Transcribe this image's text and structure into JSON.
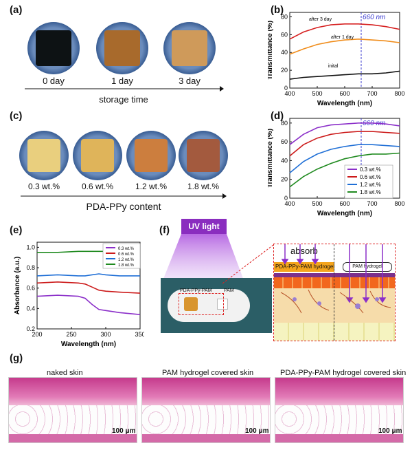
{
  "labels": {
    "a": "(a)",
    "b": "(b)",
    "c": "(c)",
    "d": "(d)",
    "e": "(e)",
    "f": "(f)",
    "g": "(g)"
  },
  "panel_a": {
    "items": [
      "0 day",
      "1 day",
      "3 day"
    ],
    "axis_label": "storage time",
    "colors": {
      "dish": "#3a5a8a",
      "s0": "#0d1214",
      "s1": "#a86a2c",
      "s2": "#cf9a5a"
    }
  },
  "panel_c": {
    "items": [
      "0.3 wt.%",
      "0.6 wt.%",
      "1.2 wt.%",
      "1.8 wt.%"
    ],
    "axis_label": "PDA-PPy content",
    "colors": {
      "s0": "#e9cf7e",
      "s1": "#dfb45a",
      "s2": "#cc7e3e",
      "s3": "#a35a3e"
    }
  },
  "panel_f": {
    "uv_label": "UV light",
    "sample_label": "PDA-PPy-PAM",
    "pam_label": "PAM",
    "absorb_label": "absorb",
    "left_layer": "PDA-PPy-PAM hydrogel",
    "right_layer": "PAM hydrogel"
  },
  "panel_g": {
    "titles": [
      "naked skin",
      "PAM hydrogel covered skin",
      "PDA-PPy-PAM hydrogel covered skin"
    ],
    "scale": "100 μm"
  },
  "chart_data": [
    {
      "id": "b",
      "type": "line",
      "xlabel": "Wavelength (nm)",
      "ylabel": "Transmittance (%)",
      "xlim": [
        400,
        800
      ],
      "ylim": [
        0,
        85
      ],
      "xticks": [
        400,
        500,
        600,
        700,
        800
      ],
      "yticks": [
        0,
        20,
        40,
        60,
        80
      ],
      "marker": {
        "x": 660,
        "label": "660 nm"
      },
      "series": [
        {
          "name": "after 3 day",
          "color": "#d62020",
          "x": [
            400,
            450,
            500,
            550,
            600,
            650,
            700,
            750,
            800
          ],
          "y": [
            55,
            63,
            68,
            71,
            72,
            72,
            71,
            69,
            66
          ]
        },
        {
          "name": "after 1 day",
          "color": "#f08c1a",
          "x": [
            400,
            450,
            500,
            550,
            600,
            650,
            700,
            750,
            800
          ],
          "y": [
            38,
            44,
            49,
            52,
            54,
            55,
            54,
            53,
            51
          ]
        },
        {
          "name": "inital",
          "color": "#111111",
          "x": [
            400,
            450,
            500,
            550,
            600,
            650,
            700,
            750,
            800
          ],
          "y": [
            10,
            12,
            13,
            14,
            15,
            16,
            16,
            17,
            19
          ]
        }
      ],
      "annotations": [
        "after 3 day",
        "after 1 day",
        "inital"
      ]
    },
    {
      "id": "d",
      "type": "line",
      "xlabel": "Wavelength (nm)",
      "ylabel": "Transmittance (%)",
      "xlim": [
        400,
        800
      ],
      "ylim": [
        0,
        85
      ],
      "xticks": [
        400,
        500,
        600,
        700,
        800
      ],
      "yticks": [
        0,
        20,
        40,
        60,
        80
      ],
      "marker": {
        "x": 660,
        "label": "660 nm"
      },
      "legend": "bottom-right",
      "series": [
        {
          "name": "0.3 wt.%",
          "color": "#8b2fc9",
          "x": [
            400,
            450,
            500,
            550,
            600,
            650,
            700,
            750,
            800
          ],
          "y": [
            57,
            68,
            75,
            78,
            79,
            80,
            80,
            79,
            77
          ]
        },
        {
          "name": "0.6 wt.%",
          "color": "#cc1a1a",
          "x": [
            400,
            450,
            500,
            550,
            600,
            650,
            700,
            750,
            800
          ],
          "y": [
            45,
            57,
            64,
            68,
            70,
            71,
            71,
            70,
            69
          ]
        },
        {
          "name": "1.2 wt.%",
          "color": "#1f6fd6",
          "x": [
            400,
            450,
            500,
            550,
            600,
            650,
            700,
            750,
            800
          ],
          "y": [
            27,
            39,
            47,
            52,
            55,
            57,
            57,
            56,
            55
          ]
        },
        {
          "name": "1.8 wt.%",
          "color": "#1f8a1f",
          "x": [
            400,
            450,
            500,
            550,
            600,
            650,
            700,
            750,
            800
          ],
          "y": [
            12,
            23,
            31,
            37,
            42,
            45,
            47,
            47,
            48
          ]
        }
      ]
    },
    {
      "id": "e",
      "type": "line",
      "xlabel": "Wavelength (nm)",
      "ylabel": "Absorbance (a.u.)",
      "xlim": [
        200,
        350
      ],
      "ylim": [
        0.2,
        1.05
      ],
      "xticks": [
        200,
        250,
        300,
        350
      ],
      "yticks": [
        0.2,
        0.4,
        0.6,
        0.8,
        1.0
      ],
      "legend": "top-right",
      "series": [
        {
          "name": "0.3 wt.%",
          "color": "#8b2fc9",
          "x": [
            200,
            230,
            260,
            270,
            280,
            290,
            300,
            320,
            350
          ],
          "y": [
            0.52,
            0.53,
            0.52,
            0.5,
            0.44,
            0.39,
            0.38,
            0.36,
            0.34
          ]
        },
        {
          "name": "0.6 wt.%",
          "color": "#cc1a1a",
          "x": [
            200,
            230,
            260,
            270,
            280,
            290,
            300,
            320,
            350
          ],
          "y": [
            0.65,
            0.66,
            0.65,
            0.64,
            0.61,
            0.58,
            0.57,
            0.56,
            0.55
          ]
        },
        {
          "name": "1.2 wt.%",
          "color": "#1f6fd6",
          "x": [
            200,
            230,
            260,
            270,
            280,
            290,
            300,
            320,
            350
          ],
          "y": [
            0.72,
            0.73,
            0.72,
            0.72,
            0.73,
            0.74,
            0.73,
            0.72,
            0.72
          ]
        },
        {
          "name": "1.8 wt.%",
          "color": "#1f8a1f",
          "x": [
            200,
            230,
            260,
            270,
            280,
            290,
            300,
            320,
            350
          ],
          "y": [
            0.95,
            0.95,
            0.96,
            0.96,
            0.96,
            0.96,
            0.96,
            0.96,
            0.95
          ]
        }
      ]
    }
  ]
}
